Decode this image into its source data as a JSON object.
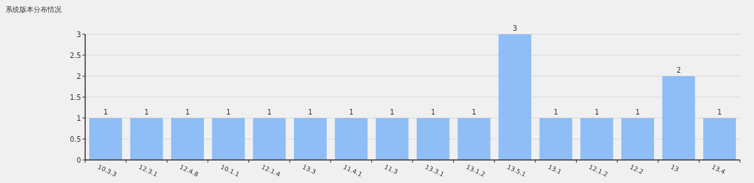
{
  "chart_data": {
    "type": "bar",
    "title": "系统版本分布情况",
    "categories": [
      "10.3.3",
      "12.3.1",
      "12.4.8",
      "10.1.1",
      "12.1.4",
      "13.3",
      "11.4.1",
      "11.3",
      "13.3.1",
      "13.1.2",
      "13.5.1",
      "13.1",
      "12.1.2",
      "12.2",
      "13",
      "13.4"
    ],
    "values": [
      1,
      1,
      1,
      1,
      1,
      1,
      1,
      1,
      1,
      1,
      3,
      1,
      1,
      1,
      2,
      1
    ],
    "color": "#8fbdf5",
    "ylim": [
      0,
      3
    ],
    "yticks": [
      0,
      0.5,
      1,
      1.5,
      2,
      2.5,
      3
    ],
    "grid": "y",
    "data_labels": true
  }
}
